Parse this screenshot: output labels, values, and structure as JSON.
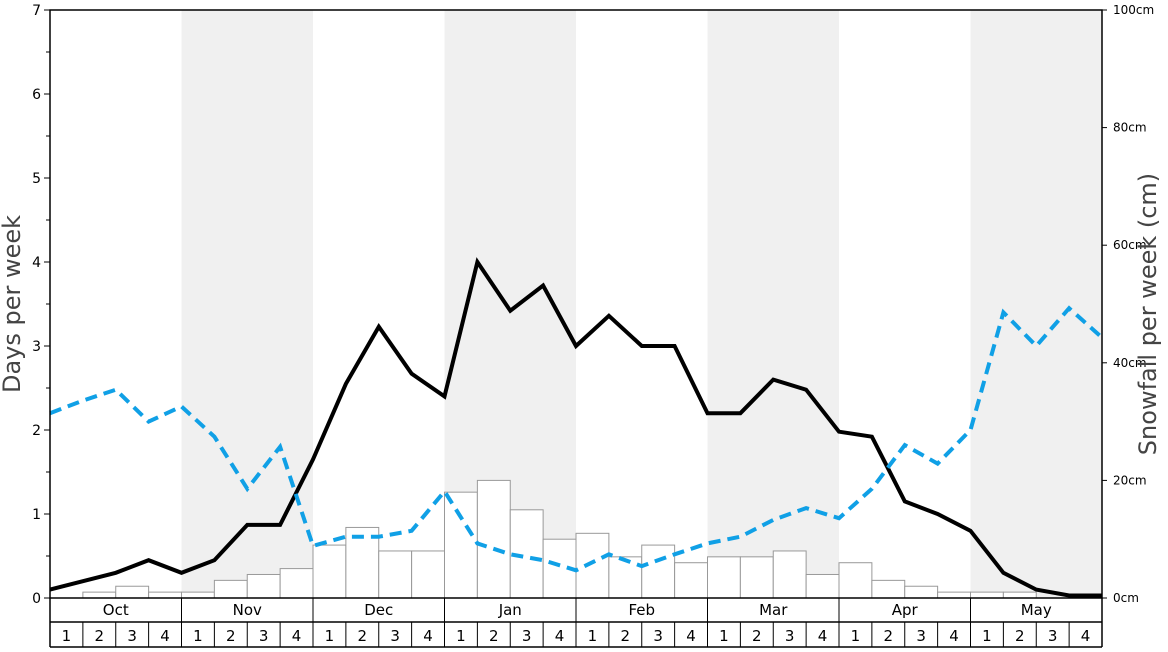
{
  "chart_data": {
    "type": "bar",
    "left_axis": {
      "label": "Days per week",
      "range": [
        0,
        7
      ],
      "major_ticks": [
        "0",
        "1",
        "2",
        "3",
        "4",
        "5",
        "6",
        "7"
      ]
    },
    "right_axis": {
      "label": "Snowfall per week (cm)",
      "range": [
        0,
        100
      ],
      "ticks": [
        "0cm",
        "20cm",
        "40cm",
        "60cm",
        "80cm",
        "100cm"
      ]
    },
    "months": [
      "Oct",
      "Nov",
      "Dec",
      "Jan",
      "Feb",
      "Mar",
      "Apr",
      "May"
    ],
    "week_labels": [
      "1",
      "2",
      "3",
      "4"
    ],
    "shaded_months": [
      "Nov",
      "Jan",
      "Mar",
      "May"
    ],
    "grid": false,
    "colors": {
      "black_line": "#000000",
      "blue_dashed_line": "#10a0e6",
      "bar_fill": "#ffffff",
      "bar_stroke": "#999999",
      "shade": "#f0f0f0"
    },
    "series": [
      {
        "axis": "right",
        "kind": "bar",
        "values": [
          0,
          1,
          2,
          1,
          1,
          3,
          4,
          5,
          9,
          12,
          8,
          8,
          18,
          20,
          15,
          10,
          11,
          7,
          9,
          6,
          7,
          7,
          8,
          4,
          6,
          3,
          2,
          1,
          1,
          1,
          0,
          0
        ]
      },
      {
        "axis": "left",
        "kind": "line",
        "style": "solid",
        "values": [
          0.1,
          0.2,
          0.3,
          0.45,
          0.3,
          0.45,
          0.87,
          0.87,
          1.65,
          2.55,
          3.23,
          2.67,
          2.4,
          4.0,
          3.42,
          3.72,
          3.0,
          3.36,
          3.0,
          3.0,
          2.2,
          2.2,
          2.6,
          2.48,
          1.98,
          1.92,
          1.15,
          1.0,
          0.8,
          0.3,
          0.1,
          0.03,
          0.03
        ]
      },
      {
        "axis": "left",
        "kind": "line",
        "style": "dashed",
        "values": [
          2.2,
          2.35,
          2.48,
          2.1,
          2.28,
          1.92,
          1.3,
          1.8,
          0.62,
          0.73,
          0.73,
          0.8,
          1.27,
          0.65,
          0.52,
          0.45,
          0.33,
          0.52,
          0.38,
          0.52,
          0.65,
          0.73,
          0.93,
          1.07,
          0.95,
          1.3,
          1.82,
          1.6,
          2.0,
          3.4,
          3.0,
          3.45,
          3.1
        ]
      }
    ]
  }
}
